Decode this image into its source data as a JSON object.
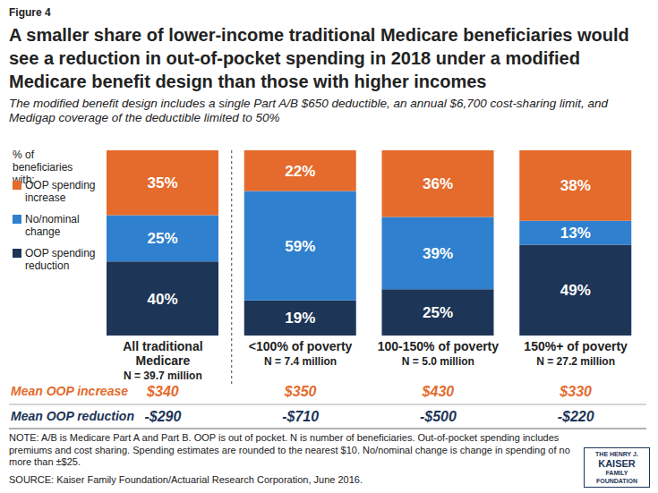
{
  "chart_data": {
    "type": "bar",
    "stacked": true,
    "data_labels": true,
    "tick_labels": "x",
    "figure_label": "Figure 4",
    "title": "A smaller share of lower-income traditional Medicare beneficiaries would see a reduction in out-of-pocket spending in 2018 under a modified Medicare benefit design than those with higher incomes",
    "subtitle": "The modified benefit design includes a single Part A/B $650 deductible, an annual $6,700 cost-sharing limit, and Medigap coverage of the deductible limited to 50%",
    "legend_title": "% of beneficiaries with:",
    "categories": [
      "All traditional Medicare",
      "<100% of poverty",
      "100-150% of poverty",
      "150%+ of poverty"
    ],
    "category_notes": [
      "N = 39.7 million",
      "N = 7.4 million",
      "N = 5.0 million",
      "N = 27.2 million"
    ],
    "ylim": [
      0,
      100
    ],
    "series": [
      {
        "name": "OOP spending increase",
        "color": "#e46b2c",
        "values": [
          35,
          22,
          36,
          38
        ],
        "value_labels": [
          "35%",
          "22%",
          "36%",
          "38%"
        ]
      },
      {
        "name": "No/nominal change",
        "color": "#2f80cf",
        "values": [
          25,
          59,
          39,
          13
        ],
        "value_labels": [
          "25%",
          "59%",
          "39%",
          "13%"
        ]
      },
      {
        "name": "OOP spending reduction",
        "color": "#1d3557",
        "values": [
          40,
          19,
          25,
          49
        ],
        "value_labels": [
          "40%",
          "19%",
          "25%",
          "49%"
        ]
      }
    ],
    "summary_rows": [
      {
        "label": "Mean OOP increase",
        "values": [
          340,
          350,
          430,
          330
        ],
        "value_labels": [
          "$340",
          "$350",
          "$430",
          "$330"
        ]
      },
      {
        "label": "Mean OOP reduction",
        "values": [
          -290,
          -710,
          -500,
          -220
        ],
        "value_labels": [
          "-$290",
          "-$710",
          "-$500",
          "-$220"
        ]
      }
    ],
    "note": "NOTE: A/B is Medicare Part A and Part B. OOP is out of pocket. N is number of beneficiaries. Out-of-pocket spending includes premiums and cost sharing. Spending estimates are rounded to the nearest $10. No/nominal change is change in spending of no more than ±$25.",
    "source": "SOURCE: Kaiser Family Foundation/Actuarial Research Corporation, June 2016.",
    "logo": [
      "THE HENRY J.",
      "KAISER",
      "FAMILY",
      "FOUNDATION"
    ]
  }
}
